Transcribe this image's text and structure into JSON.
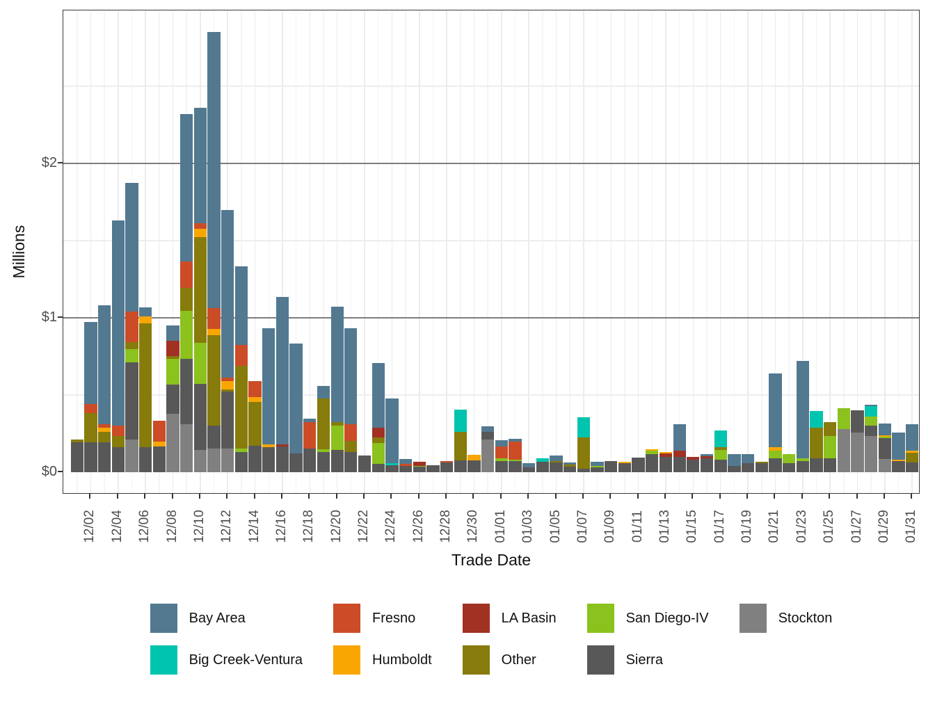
{
  "chart_data": {
    "type": "bar",
    "stacked": true,
    "xaxis": {
      "label": "Trade Date"
    },
    "yaxis": {
      "label": "Millions",
      "ticks": [
        {
          "label": "$0",
          "value": 0
        },
        {
          "label": "$1",
          "value": 1
        },
        {
          "label": "$2",
          "value": 2
        }
      ],
      "minor_gridlines": [
        0.5,
        1.5,
        2.5
      ],
      "ylim": [
        0,
        2.95
      ],
      "unit": "USD millions"
    },
    "x_tick_labels": [
      "12/02",
      "12/04",
      "12/06",
      "12/08",
      "12/10",
      "12/12",
      "12/14",
      "12/16",
      "12/18",
      "12/20",
      "12/22",
      "12/24",
      "12/26",
      "12/28",
      "12/30",
      "01/01",
      "01/03",
      "01/05",
      "01/07",
      "01/09",
      "01/11",
      "01/13",
      "01/15",
      "01/17",
      "01/19",
      "01/21",
      "01/23",
      "01/25",
      "01/27",
      "01/29",
      "01/31"
    ],
    "categories": [
      "12/01",
      "12/02",
      "12/03",
      "12/04",
      "12/05",
      "12/06",
      "12/07",
      "12/08",
      "12/09",
      "12/10",
      "12/11",
      "12/12",
      "12/13",
      "12/14",
      "12/15",
      "12/16",
      "12/17",
      "12/18",
      "12/19",
      "12/20",
      "12/21",
      "12/22",
      "12/23",
      "12/24",
      "12/25",
      "12/26",
      "12/27",
      "12/28",
      "12/29",
      "12/30",
      "12/31",
      "01/01",
      "01/02",
      "01/03",
      "01/04",
      "01/05",
      "01/06",
      "01/07",
      "01/08",
      "01/09",
      "01/10",
      "01/11",
      "01/12",
      "01/13",
      "01/14",
      "01/15",
      "01/16",
      "01/17",
      "01/18",
      "01/19",
      "01/20",
      "01/21",
      "01/22",
      "01/23",
      "01/24",
      "01/25",
      "01/26",
      "01/27",
      "01/28",
      "01/29",
      "01/30",
      "01/31"
    ],
    "series": [
      {
        "name": "Stockton",
        "color": "#808080",
        "values": [
          0,
          0,
          0,
          0,
          0.21,
          0,
          0,
          0.375,
          0.31,
          0.14,
          0.15,
          0.15,
          0,
          0,
          0,
          0,
          0,
          0,
          0,
          0,
          0,
          0,
          0,
          0,
          0,
          0,
          0,
          0,
          0,
          0,
          0.21,
          0,
          0,
          0,
          0,
          0,
          0,
          0,
          0,
          0,
          0,
          0,
          0,
          0,
          0,
          0,
          0,
          0,
          0,
          0,
          0,
          0,
          0,
          0,
          0,
          0,
          0.275,
          0.255,
          0.23,
          0.082,
          0,
          0
        ]
      },
      {
        "name": "Sierra",
        "color": "#585858",
        "values": [
          0.19,
          0.19,
          0.19,
          0.16,
          0.5,
          0.16,
          0.165,
          0.19,
          0.42,
          0.43,
          0.15,
          0.37,
          0.13,
          0.17,
          0.16,
          0.165,
          0.12,
          0.15,
          0.13,
          0.14,
          0.13,
          0.105,
          0.05,
          0.045,
          0.04,
          0.033,
          0.045,
          0.06,
          0.075,
          0.075,
          0.05,
          0.07,
          0.07,
          0.03,
          0.065,
          0.06,
          0.035,
          0.022,
          0.03,
          0.068,
          0.057,
          0.093,
          0.113,
          0.098,
          0.098,
          0.078,
          0.09,
          0.078,
          0.038,
          0.057,
          0.057,
          0.09,
          0.057,
          0.072,
          0.09,
          0.09,
          0,
          0.145,
          0.07,
          0.135,
          0.068,
          0.06
        ]
      },
      {
        "name": "San Diego-IV",
        "color": "#8bc21d",
        "values": [
          0,
          0,
          0,
          0,
          0.085,
          0,
          0,
          0.165,
          0.315,
          0.265,
          0,
          0,
          0.02,
          0,
          0,
          0,
          0,
          0,
          0.015,
          0.16,
          0,
          0,
          0.135,
          0,
          0,
          0.007,
          0,
          0,
          0,
          0,
          0,
          0.02,
          0.01,
          0,
          0,
          0,
          0,
          0,
          0.01,
          0,
          0,
          0,
          0.025,
          0,
          0,
          0,
          0,
          0.065,
          0,
          0,
          0,
          0.048,
          0.06,
          0.015,
          0,
          0.14,
          0.135,
          0,
          0.06,
          0.01,
          0,
          0
        ]
      },
      {
        "name": "Other",
        "color": "#877b0c",
        "values": [
          0.02,
          0.19,
          0.07,
          0.07,
          0.045,
          0.8,
          0,
          0.02,
          0.145,
          0.685,
          0.585,
          0.015,
          0.535,
          0.285,
          0,
          0,
          0,
          0,
          0.33,
          0.02,
          0.07,
          0,
          0.04,
          0,
          0,
          0,
          0,
          0,
          0.185,
          0,
          0,
          0,
          0,
          0,
          0,
          0.01,
          0.012,
          0.2,
          0,
          0,
          0,
          0,
          0,
          0,
          0,
          0,
          0,
          0.018,
          0,
          0,
          0.01,
          0,
          0,
          0,
          0.195,
          0.09,
          0,
          0,
          0,
          0,
          0,
          0.065
        ]
      },
      {
        "name": "LA Basin",
        "color": "#a03123",
        "values": [
          0,
          0,
          0,
          0,
          0,
          0,
          0,
          0.1,
          0,
          0,
          0,
          0,
          0,
          0,
          0,
          0.015,
          0,
          0,
          0,
          0,
          0,
          0,
          0.06,
          0,
          0,
          0.027,
          0,
          0,
          0,
          0,
          0,
          0,
          0,
          0,
          0,
          0,
          0,
          0,
          0,
          0,
          0,
          0,
          0,
          0.02,
          0.04,
          0.017,
          0.01,
          0,
          0,
          0,
          0,
          0,
          0,
          0,
          0,
          0,
          0,
          0,
          0,
          0,
          0,
          0
        ]
      },
      {
        "name": "Humboldt",
        "color": "#f9a602",
        "values": [
          0,
          0,
          0.025,
          0,
          0,
          0.045,
          0.03,
          0,
          0,
          0.055,
          0.04,
          0.055,
          0,
          0.03,
          0.02,
          0,
          0,
          0,
          0,
          0,
          0,
          0,
          0,
          0,
          0,
          0,
          0,
          0,
          0,
          0.035,
          0,
          0,
          0,
          0,
          0,
          0,
          0,
          0,
          0,
          0,
          0.01,
          0,
          0.01,
          0.01,
          0,
          0,
          0,
          0,
          0,
          0,
          0,
          0.02,
          0,
          0,
          0,
          0,
          0,
          0,
          0,
          0.008,
          0.01,
          0.012
        ]
      },
      {
        "name": "Fresno",
        "color": "#cb4c27",
        "values": [
          0,
          0.06,
          0.025,
          0.07,
          0.2,
          0,
          0.135,
          0,
          0.175,
          0.035,
          0.135,
          0.02,
          0.135,
          0.105,
          0,
          0,
          0,
          0.17,
          0,
          0,
          0.11,
          0,
          0,
          0,
          0.012,
          0,
          0,
          0.01,
          0,
          0,
          0,
          0.075,
          0.115,
          0,
          0,
          0,
          0,
          0,
          0,
          0,
          0,
          0,
          0,
          0,
          0,
          0,
          0,
          0,
          0,
          0,
          0,
          0,
          0,
          0,
          0,
          0,
          0,
          0,
          0,
          0,
          0,
          0
        ]
      },
      {
        "name": "Big Creek-Ventura",
        "color": "#00c4ae",
        "values": [
          0,
          0,
          0,
          0,
          0,
          0,
          0,
          0,
          0,
          0,
          0,
          0,
          0,
          0,
          0,
          0,
          0,
          0,
          0,
          0,
          0,
          0,
          0,
          0.01,
          0,
          0,
          0,
          0,
          0.145,
          0,
          0,
          0,
          0,
          0,
          0.025,
          0,
          0,
          0.13,
          0,
          0,
          0,
          0,
          0,
          0,
          0,
          0,
          0,
          0.105,
          0,
          0,
          0,
          0,
          0,
          0,
          0.11,
          0,
          0,
          0,
          0.065,
          0,
          0,
          0
        ]
      },
      {
        "name": "Bay Area",
        "color": "#527990",
        "values": [
          0,
          0.53,
          0.77,
          1.33,
          0.83,
          0.06,
          0,
          0.1,
          0.955,
          0.75,
          1.79,
          1.085,
          0.51,
          0,
          0.75,
          0.955,
          0.71,
          0.025,
          0.08,
          0.75,
          0.62,
          0,
          0.42,
          0.42,
          0.03,
          0,
          0,
          0,
          0,
          0,
          0.035,
          0.04,
          0.02,
          0.025,
          0,
          0.035,
          0.012,
          0,
          0.025,
          0,
          0,
          0,
          0,
          0,
          0.17,
          0,
          0.017,
          0,
          0.078,
          0.06,
          0,
          0.48,
          0,
          0.633,
          0,
          0,
          0,
          0,
          0.012,
          0.08,
          0.177,
          0.17
        ]
      }
    ],
    "legend": {
      "position": "bottom",
      "items": [
        {
          "label": "Bay Area",
          "color": "#527990"
        },
        {
          "label": "Big Creek-Ventura",
          "color": "#00c4ae"
        },
        {
          "label": "Fresno",
          "color": "#cb4c27"
        },
        {
          "label": "Humboldt",
          "color": "#f9a602"
        },
        {
          "label": "LA Basin",
          "color": "#a03123"
        },
        {
          "label": "Other",
          "color": "#877b0c"
        },
        {
          "label": "San Diego-IV",
          "color": "#8bc21d"
        },
        {
          "label": "Sierra",
          "color": "#585858"
        },
        {
          "label": "Stockton",
          "color": "#808080"
        }
      ]
    },
    "style": {
      "panel_border_color": "#383838",
      "major_hgrid_color": "#7d7d7d",
      "minor_hgrid_color": "#ededed",
      "vgrid_color": "#ececec",
      "tick_color": "#333333",
      "tick_text_color": "#4d4d4d",
      "axis_title_color": "#111111"
    }
  }
}
